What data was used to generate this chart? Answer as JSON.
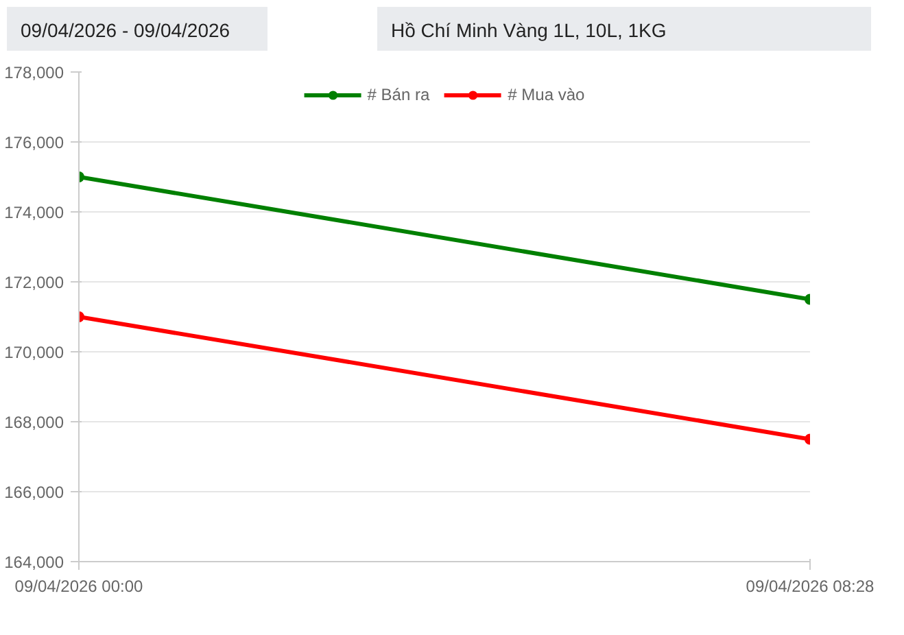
{
  "chart_data": {
    "type": "line",
    "title": "09/04/2026 - 09/04/2026",
    "subtitle": "Hồ Chí Minh Vàng 1L, 10L, 1KG",
    "x": [
      "2026-04-09T00:00",
      "2026-04-09T08:28"
    ],
    "xlim": [
      "2026-04-09T00:00",
      "2026-04-09T08:28"
    ],
    "xticks": [
      {
        "value": "2026-04-09T00:00",
        "label": "09/04/2026 00:00"
      },
      {
        "value": "2026-04-09T08:28",
        "label": "09/04/2026 08:28"
      }
    ],
    "series": [
      {
        "name": "# Bán ra",
        "color": "#008000",
        "values": [
          175000,
          171500
        ]
      },
      {
        "name": "# Mua vào",
        "color": "#ff0000",
        "values": [
          171000,
          167500
        ]
      }
    ],
    "ylim": [
      164000,
      178000
    ],
    "yticks": [
      {
        "value": 164000,
        "label": "164,000"
      },
      {
        "value": 166000,
        "label": "166,000"
      },
      {
        "value": 168000,
        "label": "168,000"
      },
      {
        "value": 170000,
        "label": "170,000"
      },
      {
        "value": 172000,
        "label": "172,000"
      },
      {
        "value": 174000,
        "label": "174,000"
      },
      {
        "value": 176000,
        "label": "176,000"
      },
      {
        "value": 178000,
        "label": "178,000"
      }
    ],
    "grid": true,
    "legend": "top",
    "marker": "circle",
    "line_style": "solid"
  }
}
